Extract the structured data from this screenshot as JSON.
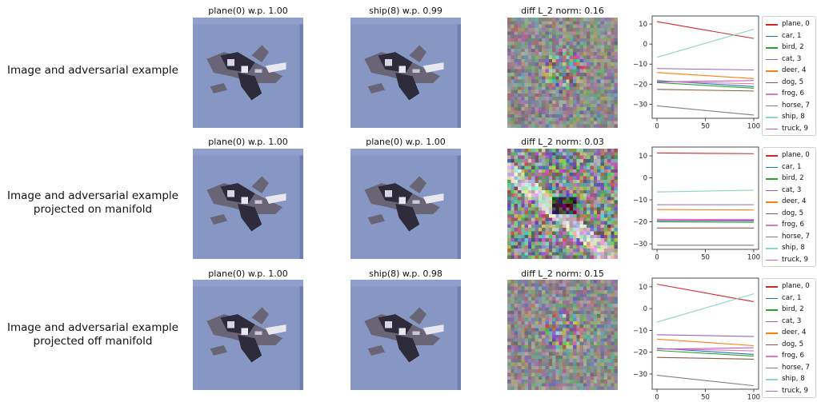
{
  "rows": [
    {
      "label_lines": [
        "Image and adversarial example"
      ],
      "titles": [
        "plane(0) w.p. 1.00",
        "ship(8) w.p. 0.99",
        "diff L_2 norm: 0.16"
      ],
      "diff_style": "noise"
    },
    {
      "label_lines": [
        "Image and adversarial example",
        "projected on manifold"
      ],
      "titles": [
        "plane(0) w.p. 1.00",
        "plane(0) w.p. 1.00",
        "diff L_2 norm: 0.03"
      ],
      "diff_style": "structured"
    },
    {
      "label_lines": [
        "Image and adversarial example",
        "projected off manifold"
      ],
      "titles": [
        "plane(0) w.p. 1.00",
        "ship(8) w.p. 0.98",
        "diff L_2 norm: 0.15"
      ],
      "diff_style": "noise"
    }
  ],
  "image_colors": {
    "background": "#8797c4",
    "edge_strip": "#6f7fb0",
    "plane_dark": "#2e2c3a",
    "plane_mid": "#6a6576",
    "plane_light": "#e8e6ef",
    "diff_gray": "#8c8c8c"
  },
  "chart_data": [
    {
      "type": "line",
      "x": [
        0,
        100
      ],
      "xticks": [
        0,
        50,
        100
      ],
      "yticks": [
        10,
        0,
        -10,
        -20,
        -30
      ],
      "xlim": [
        -5,
        105
      ],
      "ylim": [
        -37,
        14
      ],
      "legend_position": "right",
      "grid": false,
      "series": [
        {
          "name": "plane, 0",
          "color": "#d62728",
          "values": [
            11.2,
            2.8
          ]
        },
        {
          "name": "car, 1",
          "color": "#1f77b4",
          "values": [
            -18.2,
            -21.2
          ]
        },
        {
          "name": "bird, 2",
          "color": "#2ca02c",
          "values": [
            -19.2,
            -22.0
          ]
        },
        {
          "name": "cat, 3",
          "color": "#9467bd",
          "values": [
            -12.2,
            -12.9
          ]
        },
        {
          "name": "deer, 4",
          "color": "#ff7f0e",
          "values": [
            -14.2,
            -17.2
          ]
        },
        {
          "name": "dog, 5",
          "color": "#8c564b",
          "values": [
            -22.6,
            -23.4
          ]
        },
        {
          "name": "frog, 6",
          "color": "#e377c2",
          "values": [
            -18.6,
            -19.8
          ]
        },
        {
          "name": "horse, 7",
          "color": "#7f7f7f",
          "values": [
            -30.8,
            -35.4
          ]
        },
        {
          "name": "ship, 8",
          "color": "#8dd3c7",
          "values": [
            -6.6,
            7.4
          ]
        },
        {
          "name": "truck, 9",
          "color": "#c45cc4",
          "values": [
            -18.9,
            -18.2
          ]
        }
      ]
    },
    {
      "type": "line",
      "x": [
        0,
        100
      ],
      "xticks": [
        0,
        50,
        100
      ],
      "yticks": [
        10,
        0,
        -10,
        -20,
        -30
      ],
      "xlim": [
        -5,
        105
      ],
      "ylim": [
        -32.5,
        14
      ],
      "legend_position": "right",
      "grid": false,
      "series": [
        {
          "name": "plane, 0",
          "color": "#d62728",
          "values": [
            11.3,
            11.0
          ]
        },
        {
          "name": "car, 1",
          "color": "#1f77b4",
          "values": [
            -19.4,
            -19.6
          ]
        },
        {
          "name": "bird, 2",
          "color": "#2ca02c",
          "values": [
            -20.0,
            -20.2
          ]
        },
        {
          "name": "cat, 3",
          "color": "#9467bd",
          "values": [
            -12.2,
            -12.2
          ]
        },
        {
          "name": "deer, 4",
          "color": "#ff7f0e",
          "values": [
            -14.4,
            -14.6
          ]
        },
        {
          "name": "dog, 5",
          "color": "#8c564b",
          "values": [
            -22.8,
            -22.8
          ]
        },
        {
          "name": "frog, 6",
          "color": "#e377c2",
          "values": [
            -18.8,
            -18.9
          ]
        },
        {
          "name": "horse, 7",
          "color": "#7f7f7f",
          "values": [
            -30.6,
            -30.6
          ]
        },
        {
          "name": "ship, 8",
          "color": "#8dd3c7",
          "values": [
            -6.4,
            -5.6
          ]
        },
        {
          "name": "truck, 9",
          "color": "#c45cc4",
          "values": [
            -19.2,
            -19.3
          ]
        }
      ]
    },
    {
      "type": "line",
      "x": [
        0,
        100
      ],
      "xticks": [
        0,
        50,
        100
      ],
      "yticks": [
        10,
        0,
        -10,
        -20,
        -30
      ],
      "xlim": [
        -5,
        105
      ],
      "ylim": [
        -37,
        14
      ],
      "legend_position": "right",
      "grid": false,
      "series": [
        {
          "name": "plane, 0",
          "color": "#d62728",
          "values": [
            11.2,
            3.2
          ]
        },
        {
          "name": "car, 1",
          "color": "#1f77b4",
          "values": [
            -18.2,
            -21.0
          ]
        },
        {
          "name": "bird, 2",
          "color": "#2ca02c",
          "values": [
            -19.2,
            -21.8
          ]
        },
        {
          "name": "cat, 3",
          "color": "#9467bd",
          "values": [
            -12.0,
            -12.8
          ]
        },
        {
          "name": "deer, 4",
          "color": "#ff7f0e",
          "values": [
            -14.0,
            -17.0
          ]
        },
        {
          "name": "dog, 5",
          "color": "#8c564b",
          "values": [
            -22.4,
            -23.2
          ]
        },
        {
          "name": "frog, 6",
          "color": "#e377c2",
          "values": [
            -18.4,
            -19.4
          ]
        },
        {
          "name": "horse, 7",
          "color": "#7f7f7f",
          "values": [
            -30.6,
            -35.4
          ]
        },
        {
          "name": "ship, 8",
          "color": "#8dd3c7",
          "values": [
            -6.2,
            6.8
          ]
        },
        {
          "name": "truck, 9",
          "color": "#c45cc4",
          "values": [
            -18.6,
            -18.0
          ]
        }
      ]
    }
  ]
}
